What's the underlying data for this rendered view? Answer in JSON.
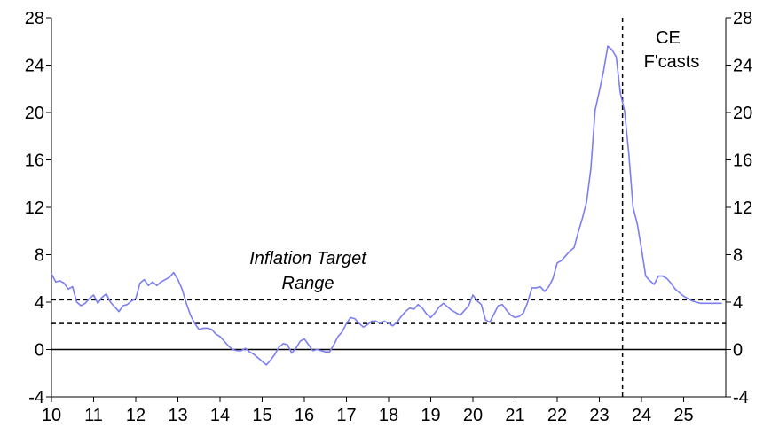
{
  "chart_data": {
    "type": "line",
    "title": "",
    "xlabel": "",
    "ylabel": "",
    "ylim": [
      -4,
      28
    ],
    "xlim": [
      10,
      26
    ],
    "y_ticks": [
      -4,
      0,
      4,
      8,
      12,
      16,
      20,
      24,
      28
    ],
    "x_ticks": [
      "10",
      "11",
      "12",
      "13",
      "14",
      "15",
      "16",
      "17",
      "18",
      "19",
      "20",
      "21",
      "22",
      "23",
      "24",
      "25"
    ],
    "grid": false,
    "legend": "none",
    "colors": {
      "series": "#7b7ff2",
      "reference": "#000000"
    },
    "annotations": {
      "target_range": [
        "Inflation Target",
        "Range"
      ],
      "forecast": [
        "CE",
        "F'casts"
      ]
    },
    "reference_lines": {
      "target_upper": 4.2,
      "target_lower": 2.2,
      "zero": 0,
      "forecast_start_x": 23.55
    },
    "series": [
      {
        "x": [
          10.0,
          10.1,
          10.2,
          10.3,
          10.4,
          10.5,
          10.6,
          10.7,
          10.8,
          10.9,
          11.0,
          11.1,
          11.2,
          11.3,
          11.4,
          11.5,
          11.6,
          11.7,
          11.8,
          11.9,
          12.0,
          12.1,
          12.2,
          12.3,
          12.4,
          12.5,
          12.6,
          12.7,
          12.8,
          12.9,
          13.0,
          13.1,
          13.2,
          13.3,
          13.4,
          13.5,
          13.6,
          13.7,
          13.8,
          13.9,
          14.0,
          14.1,
          14.2,
          14.3,
          14.4,
          14.5,
          14.6,
          14.7,
          14.8,
          14.9,
          15.0,
          15.1,
          15.2,
          15.3,
          15.4,
          15.5,
          15.6,
          15.7,
          15.8,
          15.9,
          16.0,
          16.1,
          16.2,
          16.3,
          16.4,
          16.5,
          16.6,
          16.7,
          16.8,
          16.9,
          17.0,
          17.1,
          17.2,
          17.3,
          17.4,
          17.5,
          17.6,
          17.7,
          17.8,
          17.9,
          18.0,
          18.1,
          18.2,
          18.3,
          18.4,
          18.5,
          18.6,
          18.7,
          18.8,
          18.9,
          19.0,
          19.1,
          19.2,
          19.3,
          19.4,
          19.5,
          19.6,
          19.7,
          19.8,
          19.9,
          20.0,
          20.1,
          20.2,
          20.3,
          20.4,
          20.5,
          20.6,
          20.7,
          20.8,
          20.9,
          21.0,
          21.1,
          21.2,
          21.3,
          21.4,
          21.5,
          21.6,
          21.7,
          21.8,
          21.9,
          22.0,
          22.1,
          22.2,
          22.3,
          22.4,
          22.5,
          22.6,
          22.7,
          22.8,
          22.9,
          23.0,
          23.1,
          23.2,
          23.3,
          23.4,
          23.5,
          23.6,
          23.7,
          23.8,
          23.9,
          24.0,
          24.1,
          24.2,
          24.3,
          24.4,
          24.5,
          24.6,
          24.7,
          24.8,
          24.9,
          25.0,
          25.1,
          25.2,
          25.3,
          25.4,
          25.5,
          25.6,
          25.7,
          25.8,
          25.9
        ],
        "values": [
          6.4,
          5.7,
          5.8,
          5.6,
          5.1,
          5.3,
          4.0,
          3.7,
          3.9,
          4.3,
          4.6,
          3.9,
          4.4,
          4.7,
          4.0,
          3.6,
          3.2,
          3.7,
          3.8,
          4.1,
          4.3,
          5.6,
          5.9,
          5.4,
          5.7,
          5.4,
          5.7,
          5.9,
          6.1,
          6.5,
          5.9,
          5.1,
          3.9,
          2.9,
          2.2,
          1.7,
          1.8,
          1.8,
          1.7,
          1.3,
          1.1,
          0.7,
          0.3,
          0.0,
          -0.1,
          -0.1,
          0.1,
          -0.2,
          -0.4,
          -0.7,
          -1.0,
          -1.3,
          -0.9,
          -0.4,
          0.2,
          0.5,
          0.4,
          -0.3,
          0.1,
          0.7,
          0.9,
          0.4,
          -0.1,
          0.0,
          -0.1,
          -0.2,
          -0.2,
          0.4,
          1.1,
          1.5,
          2.2,
          2.7,
          2.6,
          2.2,
          1.9,
          2.1,
          2.4,
          2.4,
          2.2,
          2.4,
          2.2,
          2.0,
          2.3,
          2.8,
          3.2,
          3.5,
          3.4,
          3.8,
          3.5,
          3.0,
          2.7,
          3.1,
          3.6,
          3.9,
          3.6,
          3.3,
          3.1,
          2.9,
          3.3,
          3.7,
          4.6,
          4.1,
          3.8,
          2.5,
          2.3,
          3.0,
          3.7,
          3.8,
          3.3,
          2.9,
          2.7,
          2.8,
          3.1,
          4.0,
          5.2,
          5.2,
          5.3,
          4.9,
          5.3,
          6.0,
          7.3,
          7.5,
          7.9,
          8.3,
          8.6,
          9.9,
          11.1,
          12.5,
          15.3,
          20.2,
          21.8,
          23.5,
          25.6,
          25.3,
          24.7,
          21.6,
          20.1,
          16.5,
          12.0,
          10.6,
          8.5,
          6.2,
          5.8,
          5.5,
          6.2,
          6.2,
          6.0,
          5.6,
          5.1,
          4.8,
          4.5,
          4.3,
          4.1,
          4.0,
          3.9,
          3.9,
          3.9,
          3.9,
          3.9,
          3.9
        ]
      }
    ]
  }
}
